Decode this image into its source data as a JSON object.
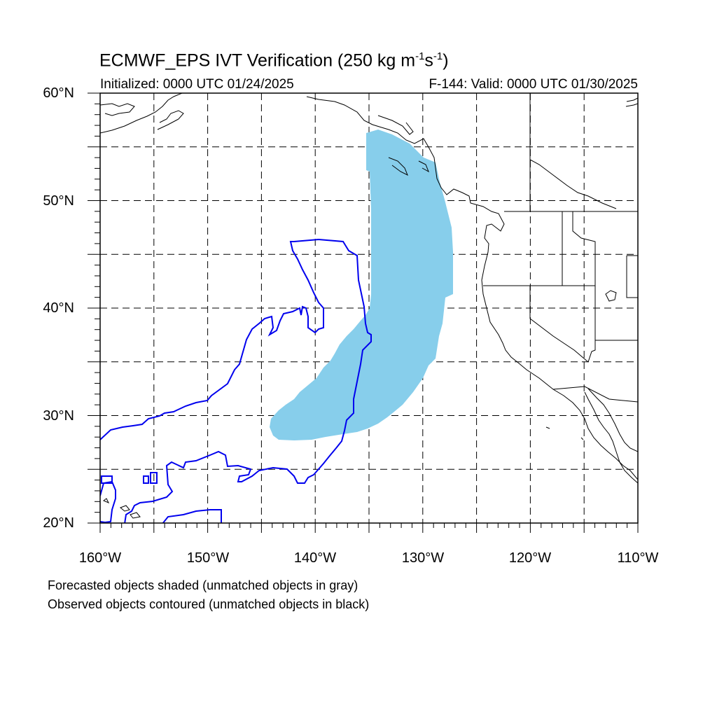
{
  "title": {
    "main": "ECMWF_EPS IVT Verification (250 kg m",
    "sup1": "-1",
    "mid": "s",
    "sup2": "-1",
    "end": ")"
  },
  "initialized": "Initialized: 0000 UTC 01/24/2025",
  "valid": "F-144: Valid: 0000 UTC 01/30/2025",
  "lat_labels": [
    "60°N",
    "50°N",
    "40°N",
    "30°N",
    "20°N"
  ],
  "lon_labels": [
    "160°W",
    "150°W",
    "140°W",
    "130°W",
    "120°W",
    "110°W"
  ],
  "notes": [
    "Forecasted objects shaded (unmatched objects in gray)",
    "Observed objects contoured (unmatched objects in black)"
  ],
  "colors": {
    "forecast_fill": "#87ceeb",
    "observed_contour": "#0000ee",
    "grid": "#000000"
  },
  "map_extent": {
    "lon": [
      -160,
      -110
    ],
    "lat": [
      20,
      60
    ]
  }
}
